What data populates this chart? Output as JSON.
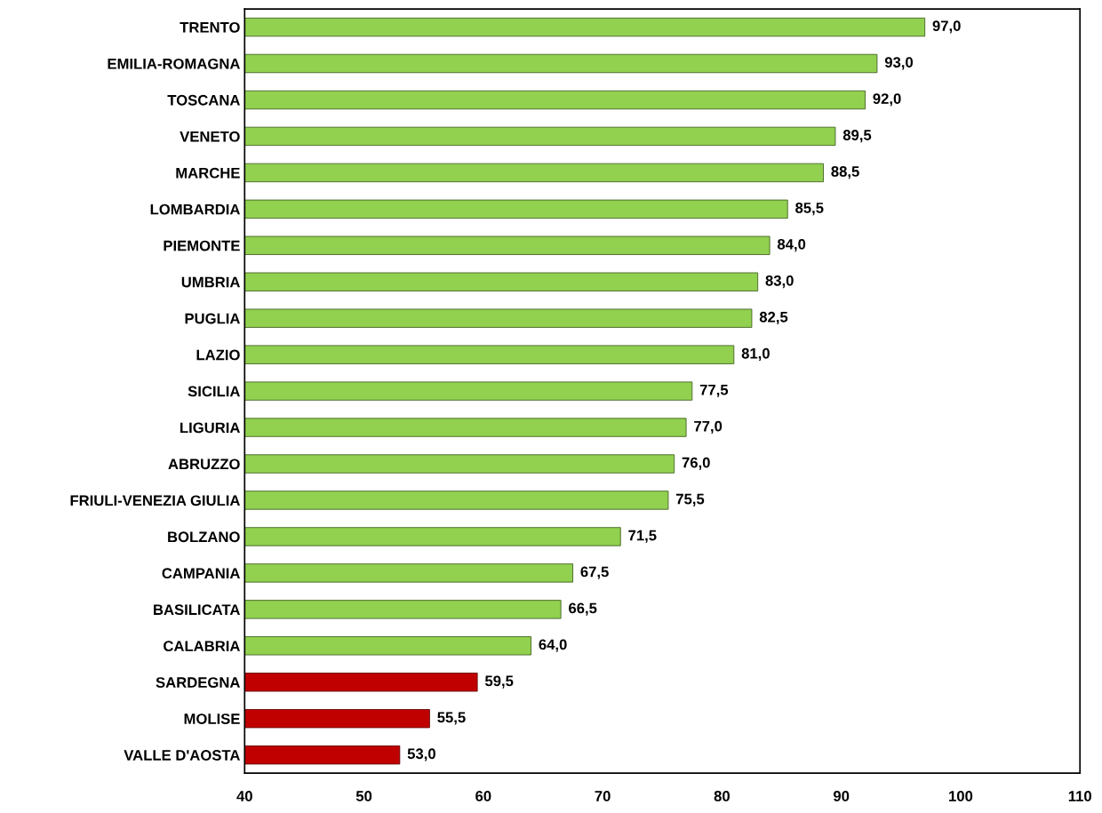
{
  "chart_data": {
    "type": "bar",
    "orientation": "horizontal",
    "categories": [
      "TRENTO",
      "EMILIA-ROMAGNA",
      "TOSCANA",
      "VENETO",
      "MARCHE",
      "LOMBARDIA",
      "PIEMONTE",
      "UMBRIA",
      "PUGLIA",
      "LAZIO",
      "SICILIA",
      "LIGURIA",
      "ABRUZZO",
      "FRIULI-VENEZIA GIULIA",
      "BOLZANO",
      "CAMPANIA",
      "BASILICATA",
      "CALABRIA",
      "SARDEGNA",
      "MOLISE",
      "VALLE D'AOSTA"
    ],
    "values": [
      97.0,
      93.0,
      92.0,
      89.5,
      88.5,
      85.5,
      84.0,
      83.0,
      82.5,
      81.0,
      77.5,
      77.0,
      76.0,
      75.5,
      71.5,
      67.5,
      66.5,
      64.0,
      59.5,
      55.5,
      53.0
    ],
    "value_labels": [
      "97,0",
      "93,0",
      "92,0",
      "89,5",
      "88,5",
      "85,5",
      "84,0",
      "83,0",
      "82,5",
      "81,0",
      "77,5",
      "77,0",
      "76,0",
      "75,5",
      "71,5",
      "67,5",
      "66,5",
      "64,0",
      "59,5",
      "55,5",
      "53,0"
    ],
    "colors": [
      "#92d050",
      "#92d050",
      "#92d050",
      "#92d050",
      "#92d050",
      "#92d050",
      "#92d050",
      "#92d050",
      "#92d050",
      "#92d050",
      "#92d050",
      "#92d050",
      "#92d050",
      "#92d050",
      "#92d050",
      "#92d050",
      "#92d050",
      "#92d050",
      "#c00000",
      "#c00000",
      "#c00000"
    ],
    "xlim": [
      40,
      110
    ],
    "xticks": [
      40,
      50,
      60,
      70,
      80,
      90,
      100,
      110
    ],
    "grid": false,
    "legend": false
  }
}
